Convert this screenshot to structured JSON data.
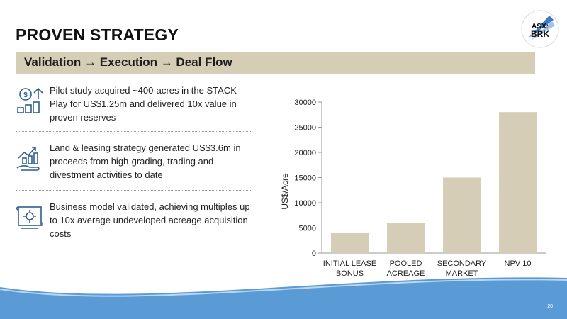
{
  "header": {
    "title": "PROVEN STRATEGY",
    "banner": "Validation → Execution → Deal Flow"
  },
  "logo": {
    "line1": "ASX:",
    "line2": "BRK"
  },
  "bullets": [
    {
      "icon": "money-growth-icon",
      "text": "Pilot study acquired ~400-acres in the STACK Play for US$1.25m and  delivered 10x value in proven reserves"
    },
    {
      "icon": "hand-growth-chart-icon",
      "text": "Land & leasing strategy generated US$3.6m in proceeds from high-grading, trading and divestment activities to date"
    },
    {
      "icon": "blueprint-gear-icon",
      "text": "Business model validated, achieving multiples up to 10x average undeveloped acreage acquisition costs"
    }
  ],
  "chart_data": {
    "type": "bar",
    "categories": [
      [
        "INITIAL LEASE",
        "BONUS"
      ],
      [
        "POOLED",
        "ACREAGE"
      ],
      [
        "SECONDARY",
        "MARKET"
      ],
      [
        "NPV 10"
      ]
    ],
    "values": [
      4000,
      6000,
      15000,
      28000
    ],
    "ylabel": "US$/Acre",
    "xlabel": "",
    "ylim": [
      0,
      30000
    ],
    "yticks": [
      0,
      5000,
      10000,
      15000,
      20000,
      25000,
      30000
    ],
    "grid": false,
    "bar_color": "#d6cdb7"
  },
  "footer": {
    "page": "20"
  },
  "colors": {
    "banner": "#d6cdb7",
    "icon": "#2f5f8f",
    "wave": "#5b9bd5"
  }
}
